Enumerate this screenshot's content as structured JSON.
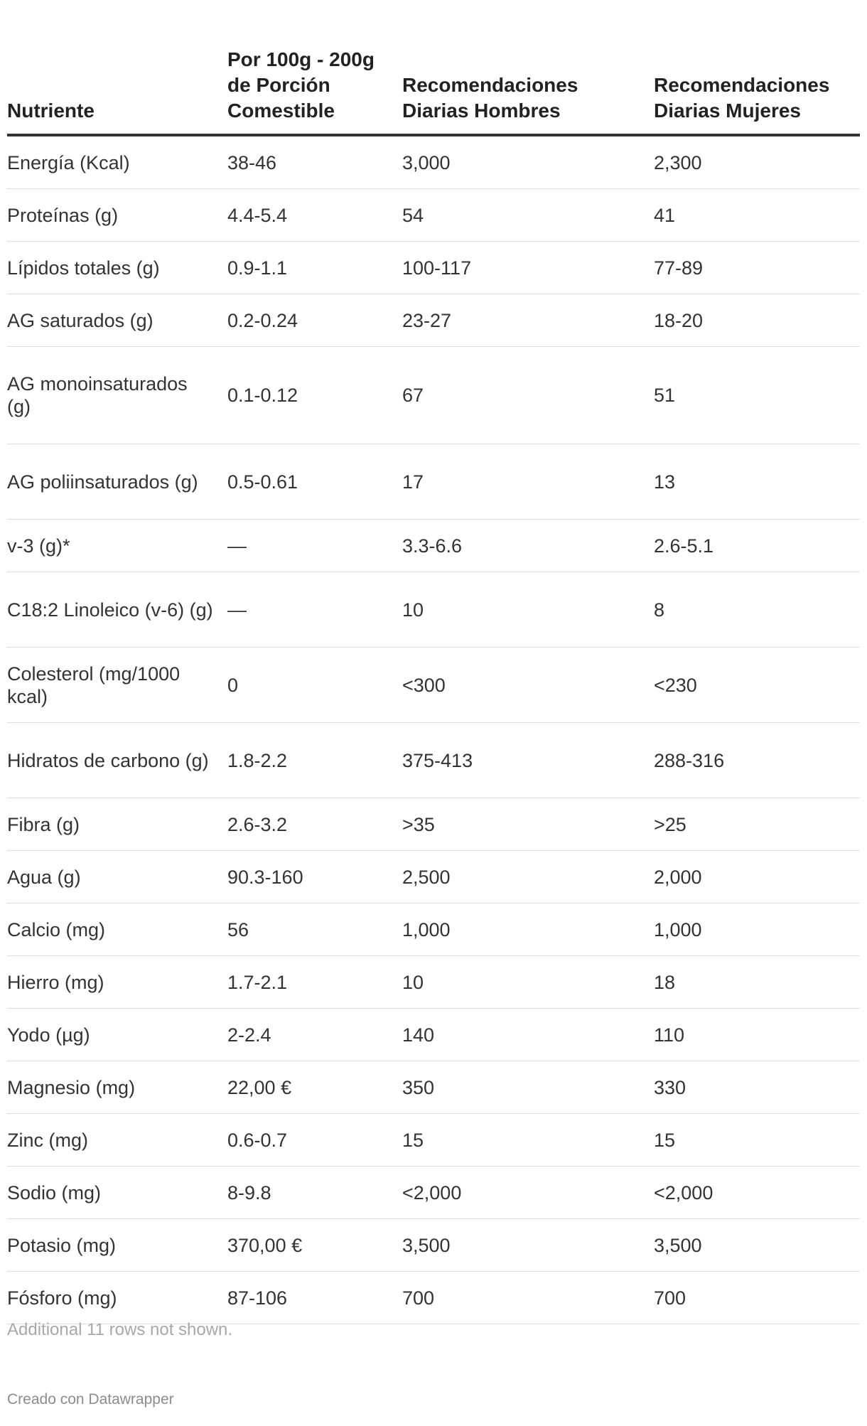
{
  "table": {
    "headers": [
      "Nutriente",
      "Por 100g - 200g de Porción Comestible",
      "Recomendaciones Diarias Hombres",
      "Recomendaciones Diarias Mujeres"
    ],
    "rows": [
      [
        "Energía (Kcal)",
        "38-46",
        "3,000",
        "2,300"
      ],
      [
        "Proteínas (g)",
        "4.4-5.4",
        "54",
        "41"
      ],
      [
        "Lípidos totales (g)",
        "0.9-1.1",
        "100-117",
        "77-89"
      ],
      [
        "AG saturados (g)",
        "0.2-0.24",
        "23-27",
        "18-20"
      ],
      [
        "AG monoinsaturados (g)",
        "0.1-0.12",
        "67",
        "51"
      ],
      [
        "AG poliinsaturados (g)",
        "0.5-0.61",
        "17",
        "13"
      ],
      [
        "v-3 (g)*",
        "—",
        "3.3-6.6",
        "2.6-5.1"
      ],
      [
        "C18:2 Linoleico (v-6) (g)",
        "—",
        "10",
        "8"
      ],
      [
        "Colesterol (mg/1000 kcal)",
        "0",
        "<300",
        "<230"
      ],
      [
        "Hidratos de carbono (g)",
        "1.8-2.2",
        "375-413",
        "288-316"
      ],
      [
        "Fibra (g)",
        "2.6-3.2",
        ">35",
        ">25"
      ],
      [
        "Agua (g)",
        "90.3-160",
        "2,500",
        "2,000"
      ],
      [
        "Calcio (mg)",
        "56",
        "1,000",
        "1,000"
      ],
      [
        "Hierro (mg)",
        "1.7-2.1",
        "10",
        "18"
      ],
      [
        "Yodo (µg)",
        "2-2.4",
        "140",
        "110"
      ],
      [
        "Magnesio (mg)",
        "22,00 €",
        "350",
        "330"
      ],
      [
        "Zinc (mg)",
        "0.6-0.7",
        "15",
        "15"
      ],
      [
        "Sodio (mg)",
        "8-9.8",
        "<2,000",
        "<2,000"
      ],
      [
        "Potasio (mg)",
        "370,00 €",
        "3,500",
        "3,500"
      ],
      [
        "Fósforo (mg)",
        "87-106",
        "700",
        "700"
      ]
    ]
  },
  "notice": "Additional 11 rows not shown.",
  "credit": "Creado con Datawrapper",
  "colors": {
    "text": "#333333",
    "header_rule": "#333333",
    "row_rule": "#dddddd",
    "notice": "#a8a8a8",
    "credit": "#8c8c8c"
  }
}
